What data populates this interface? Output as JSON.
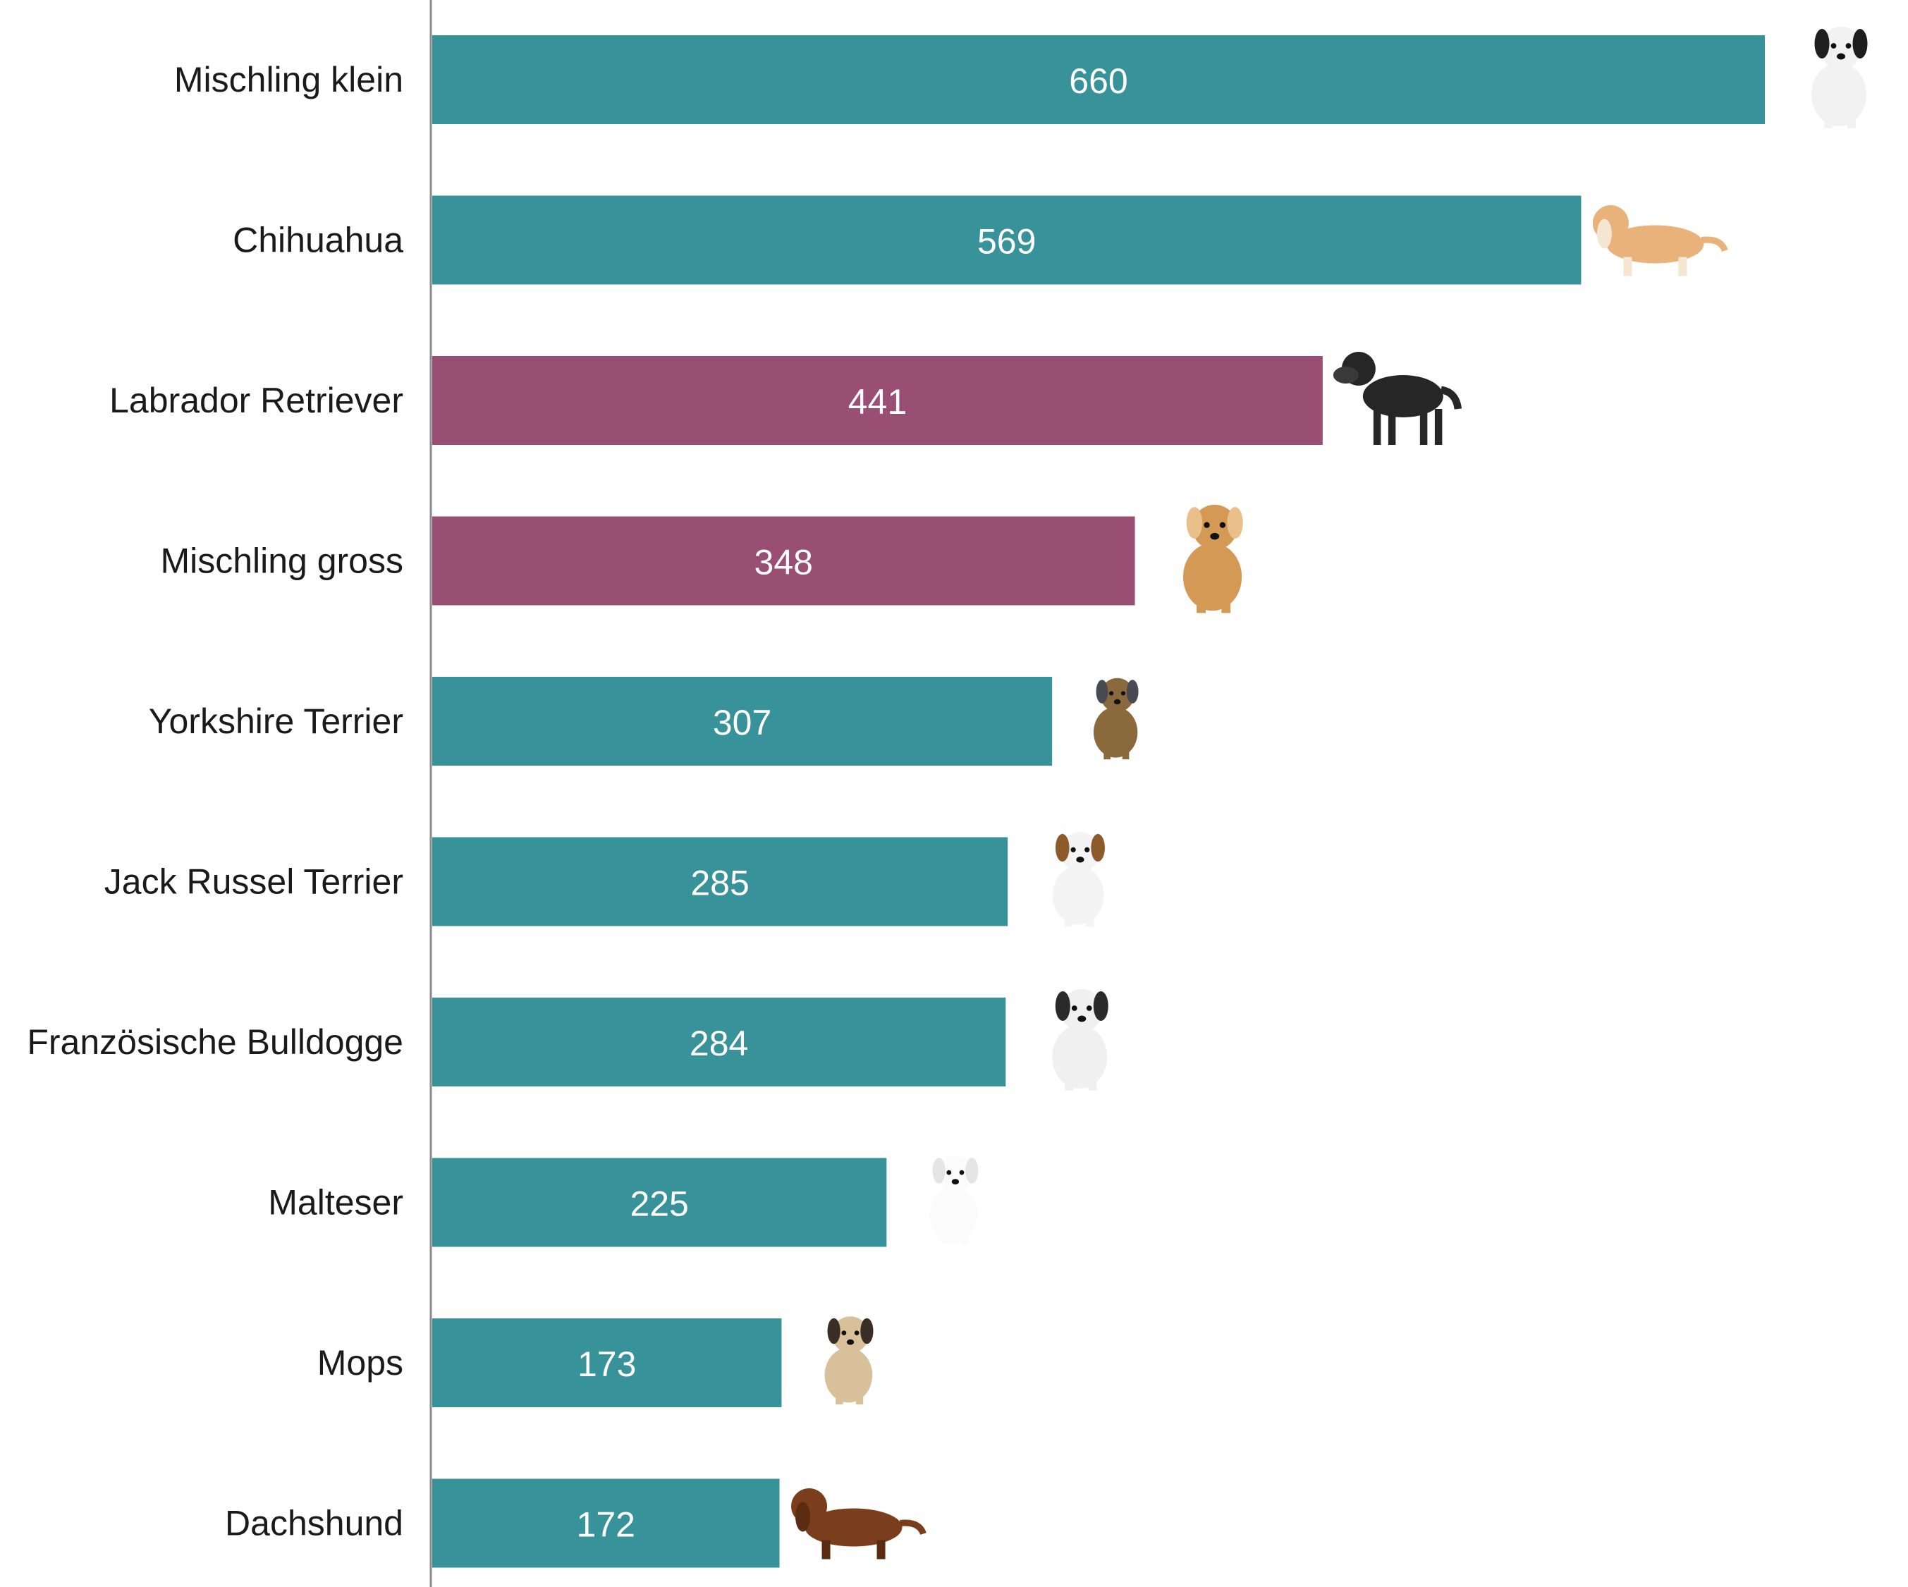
{
  "chart_data": {
    "type": "bar",
    "orientation": "horizontal",
    "categories": [
      "Mischling klein",
      "Chihuahua",
      "Labrador Retriever",
      "Mischling gross",
      "Yorkshire Terrier",
      "Jack Russel Terrier",
      "Französische Bulldogge",
      "Malteser",
      "Mops",
      "Dachshund"
    ],
    "values": [
      660,
      569,
      441,
      348,
      307,
      285,
      284,
      225,
      173,
      172
    ],
    "size_class": [
      "small",
      "small",
      "large",
      "large",
      "small",
      "small",
      "small",
      "small",
      "small",
      "small"
    ],
    "colors": {
      "small": "#37929A",
      "large": "#984F73"
    },
    "icons": [
      "dog-photo-small-mixed-breed",
      "dog-photo-chihuahua",
      "dog-photo-labrador-retriever",
      "dog-photo-large-mixed-breed",
      "dog-photo-yorkshire-terrier",
      "dog-photo-jack-russell-terrier",
      "dog-photo-french-bulldog",
      "dog-photo-maltese",
      "dog-photo-pug",
      "dog-photo-dachshund"
    ],
    "title": "",
    "xlabel": "",
    "ylabel": "",
    "xlim": [
      0,
      660
    ],
    "data_labels": "inside-center",
    "grid": false,
    "legend": "none"
  }
}
